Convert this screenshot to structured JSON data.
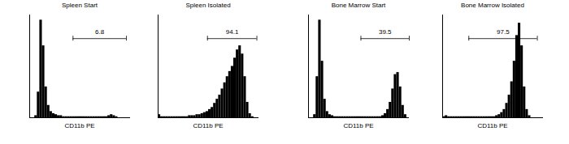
{
  "chart_data": [
    {
      "type": "histogram",
      "title": "Spleen Start",
      "x_label": "CD11b PE",
      "color": "#000000",
      "tick_labels": false,
      "xlim": [
        0,
        100
      ],
      "ylim": [
        0,
        100
      ],
      "bins": [
        0,
        2.5,
        5,
        7.5,
        10,
        12.5,
        15,
        17.5,
        20,
        22.5,
        25,
        27.5,
        30,
        32.5,
        35,
        37.5,
        40,
        42.5,
        45,
        47.5,
        50,
        52.5,
        55,
        57.5,
        60,
        62.5,
        65,
        67.5,
        70,
        72.5,
        75,
        77.5,
        80,
        82.5,
        85,
        87.5,
        90,
        92.5,
        95,
        97.5,
        100
      ],
      "values": [
        0,
        0,
        2,
        25,
        95,
        70,
        30,
        12,
        6,
        4,
        3,
        2,
        2,
        1,
        1,
        1,
        1,
        1,
        1,
        1,
        1,
        1,
        1,
        1,
        1,
        1,
        1,
        1,
        1,
        1,
        1,
        2,
        3,
        2,
        1,
        0,
        0,
        0,
        0,
        0
      ],
      "gate": {
        "x": [
          43,
          96
        ],
        "y": 77,
        "label": "6.8"
      }
    },
    {
      "type": "histogram",
      "title": "Spleen Isolated",
      "x_label": "CD11b PE",
      "color": "#000000",
      "tick_labels": false,
      "xlim": [
        0,
        100
      ],
      "ylim": [
        0,
        100
      ],
      "bins": [
        0,
        2.5,
        5,
        7.5,
        10,
        12.5,
        15,
        17.5,
        20,
        22.5,
        25,
        27.5,
        30,
        32.5,
        35,
        37.5,
        40,
        42.5,
        45,
        47.5,
        50,
        52.5,
        55,
        57.5,
        60,
        62.5,
        65,
        67.5,
        70,
        72.5,
        75,
        77.5,
        80,
        82.5,
        85,
        87.5,
        90,
        92.5,
        95,
        97.5,
        100
      ],
      "values": [
        3,
        1,
        1,
        1,
        1,
        1,
        1,
        1,
        1,
        1,
        1,
        1,
        2,
        2,
        2,
        3,
        3,
        4,
        5,
        6,
        8,
        10,
        14,
        18,
        22,
        28,
        34,
        40,
        45,
        50,
        58,
        66,
        70,
        62,
        40,
        15,
        4,
        1,
        0,
        0
      ],
      "gate": {
        "x": [
          49,
          98
        ],
        "y": 77,
        "label": "94.1"
      }
    },
    {
      "type": "histogram",
      "title": "Bone Marrow Start",
      "x_label": "CD11b PE",
      "color": "#000000",
      "tick_labels": false,
      "xlim": [
        0,
        100
      ],
      "ylim": [
        0,
        100
      ],
      "bins": [
        0,
        2.5,
        5,
        7.5,
        10,
        12.5,
        15,
        17.5,
        20,
        22.5,
        25,
        27.5,
        30,
        32.5,
        35,
        37.5,
        40,
        42.5,
        45,
        47.5,
        50,
        52.5,
        55,
        57.5,
        60,
        62.5,
        65,
        67.5,
        70,
        72.5,
        75,
        77.5,
        80,
        82.5,
        85,
        87.5,
        90,
        92.5,
        95,
        97.5,
        100
      ],
      "values": [
        0,
        0,
        3,
        40,
        95,
        55,
        18,
        6,
        3,
        2,
        1,
        1,
        1,
        1,
        1,
        1,
        1,
        1,
        1,
        1,
        1,
        1,
        1,
        1,
        1,
        1,
        1,
        1,
        1,
        2,
        4,
        8,
        15,
        28,
        42,
        44,
        30,
        12,
        3,
        0
      ],
      "gate": {
        "x": [
          52,
          100
        ],
        "y": 77,
        "label": "39.5"
      }
    },
    {
      "type": "histogram",
      "title": "Bone Marrow Isolated",
      "x_label": "CD11b PE",
      "color": "#000000",
      "tick_labels": false,
      "xlim": [
        0,
        100
      ],
      "ylim": [
        0,
        100
      ],
      "bins": [
        0,
        2.5,
        5,
        7.5,
        10,
        12.5,
        15,
        17.5,
        20,
        22.5,
        25,
        27.5,
        30,
        32.5,
        35,
        37.5,
        40,
        42.5,
        45,
        47.5,
        50,
        52.5,
        55,
        57.5,
        60,
        62.5,
        65,
        67.5,
        70,
        72.5,
        75,
        77.5,
        80,
        82.5,
        85,
        87.5,
        90,
        92.5,
        95,
        97.5,
        100
      ],
      "values": [
        1,
        2,
        1,
        1,
        1,
        1,
        1,
        1,
        1,
        1,
        1,
        1,
        1,
        1,
        1,
        1,
        1,
        1,
        1,
        1,
        1,
        2,
        3,
        5,
        8,
        14,
        22,
        35,
        55,
        80,
        92,
        70,
        30,
        8,
        2,
        0,
        0,
        0,
        0,
        0
      ],
      "gate": {
        "x": [
          26,
          94
        ],
        "y": 77,
        "label": "97.5"
      }
    }
  ]
}
